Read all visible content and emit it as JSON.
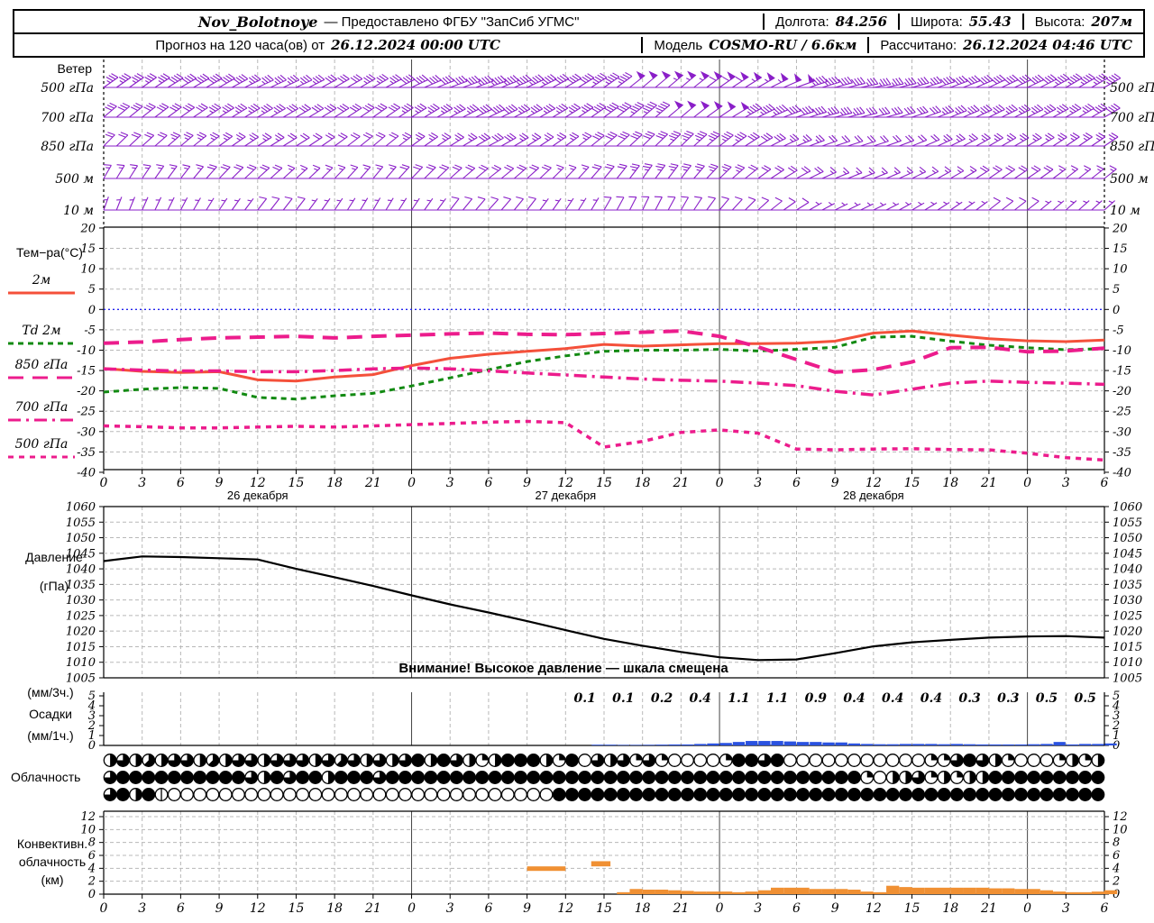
{
  "header": {
    "station": "Nov_Bolotnoye",
    "provider": "— Предоставлено ФГБУ \"ЗапСиб УГМС\"",
    "lon_label": "Долгота:",
    "lon": "84.256",
    "lat_label": "Широта:",
    "lat": "55.43",
    "alt_label": "Высота:",
    "alt": "207м",
    "forecast_label": "Прогноз на 120 часа(ов) от",
    "forecast_start": "26.12.2024 00:00 UTC",
    "model_label": "Модель",
    "model": "COSMO-RU / 6.6км",
    "calc_label": "Рассчитано:",
    "calc_time": "26.12.2024 04:46 UTC"
  },
  "panels": {
    "wind": {
      "title": "Ветер",
      "levels": [
        "500 гПа",
        "700 гПа",
        "850 гПа",
        "500 м",
        "10 м"
      ]
    },
    "temp": {
      "title": "Тем−ра(°C)"
    },
    "pressure": {
      "title1": "Давление",
      "title2": "(гПа)",
      "warning": "Внимание! Высокое давление — шкала смещена"
    },
    "precip": {
      "title1": "(мм/3ч.)",
      "title2": "Осадки",
      "title3": "(мм/1ч.)"
    },
    "cloud": {
      "title": "Облачность"
    },
    "conv": {
      "title1": "Конвективн.",
      "title2": "облачность",
      "title3": "(км)"
    }
  },
  "chart_data": {
    "type": "meteogram",
    "x_hours_range": [
      0,
      78
    ],
    "x_tick_step": 3,
    "step_h": 3,
    "day_labels": [
      {
        "hour": 12,
        "label": "26 декабря"
      },
      {
        "hour": 36,
        "label": "27 декабря"
      },
      {
        "hour": 60,
        "label": "28 декабря"
      }
    ],
    "colors": {
      "barb": "#8a1fc8",
      "grid": "#b8b8b8",
      "day_grid": "#444444",
      "zero_line": "#2222ee",
      "pressure_line": "#000000",
      "precip_bar": "#2a52e0",
      "conv_bar": "#f09033"
    },
    "wind_barbs": {
      "levels": [
        {
          "name": "500 гПа",
          "speeds_kt": [
            35,
            35,
            40,
            40,
            35,
            35,
            30,
            35,
            40,
            40,
            45,
            45,
            40,
            45,
            50,
            55,
            60,
            55,
            50,
            40,
            35,
            35,
            40,
            40,
            40,
            45,
            45
          ],
          "dirs_deg": [
            235,
            235,
            240,
            240,
            245,
            245,
            240,
            240,
            245,
            250,
            250,
            245,
            240,
            235,
            230,
            230,
            235,
            240,
            250,
            255,
            260,
            255,
            250,
            245,
            245,
            240,
            240
          ]
        },
        {
          "name": "700 гПа",
          "speeds_kt": [
            30,
            30,
            30,
            35,
            35,
            30,
            30,
            30,
            35,
            35,
            40,
            35,
            35,
            40,
            45,
            50,
            50,
            45,
            40,
            35,
            30,
            30,
            35,
            35,
            35,
            35,
            40
          ],
          "dirs_deg": [
            230,
            232,
            235,
            238,
            240,
            240,
            238,
            235,
            238,
            242,
            245,
            242,
            238,
            234,
            230,
            230,
            236,
            244,
            252,
            256,
            256,
            252,
            248,
            244,
            244,
            240,
            240
          ]
        },
        {
          "name": "850 гПа",
          "speeds_kt": [
            20,
            20,
            25,
            25,
            25,
            20,
            20,
            20,
            25,
            25,
            30,
            25,
            25,
            30,
            30,
            35,
            35,
            30,
            25,
            20,
            20,
            20,
            25,
            25,
            25,
            25,
            25
          ],
          "dirs_deg": [
            225,
            228,
            230,
            234,
            238,
            238,
            234,
            230,
            234,
            238,
            242,
            238,
            234,
            230,
            226,
            226,
            232,
            240,
            248,
            252,
            252,
            248,
            244,
            240,
            240,
            236,
            236
          ]
        },
        {
          "name": "500 м",
          "speeds_kt": [
            15,
            15,
            15,
            20,
            20,
            15,
            15,
            15,
            20,
            20,
            20,
            20,
            15,
            20,
            25,
            25,
            25,
            20,
            20,
            15,
            15,
            15,
            15,
            20,
            20,
            15,
            15
          ],
          "dirs_deg": [
            210,
            214,
            218,
            224,
            228,
            228,
            224,
            220,
            224,
            228,
            232,
            228,
            224,
            220,
            216,
            218,
            226,
            234,
            242,
            248,
            248,
            244,
            240,
            236,
            236,
            232,
            232
          ]
        },
        {
          "name": "10 м",
          "speeds_kt": [
            5,
            5,
            5,
            5,
            8,
            8,
            5,
            5,
            5,
            8,
            8,
            8,
            5,
            8,
            10,
            10,
            10,
            8,
            8,
            5,
            5,
            5,
            5,
            8,
            8,
            5,
            5
          ],
          "dirs_deg": [
            200,
            204,
            208,
            214,
            218,
            218,
            214,
            210,
            214,
            218,
            222,
            218,
            214,
            210,
            206,
            210,
            220,
            228,
            238,
            244,
            244,
            240,
            236,
            232,
            232,
            228,
            228
          ]
        }
      ]
    },
    "temperature": {
      "ylim": [
        -40,
        20
      ],
      "grid_step": 5,
      "series": [
        {
          "name": "2м",
          "color": "#f4503a",
          "width": 3,
          "dash": "",
          "values": [
            -14.5,
            -15.2,
            -15.5,
            -15.3,
            -17.3,
            -17.6,
            -16.6,
            -16.0,
            -13.8,
            -12.0,
            -11.0,
            -10.3,
            -9.6,
            -8.6,
            -9.0,
            -8.7,
            -8.4,
            -8.4,
            -8.3,
            -7.8,
            -5.8,
            -5.3,
            -6.3,
            -7.2,
            -7.7,
            -7.9,
            -7.5
          ]
        },
        {
          "name": "Td  2м",
          "color": "#128a12",
          "width": 3,
          "dash": "6 5",
          "values": [
            -20.3,
            -19.6,
            -19.2,
            -19.4,
            -21.6,
            -22.0,
            -21.2,
            -20.6,
            -18.8,
            -16.8,
            -14.8,
            -12.8,
            -11.4,
            -10.3,
            -10.0,
            -10.0,
            -9.8,
            -10.2,
            -9.8,
            -9.3,
            -6.8,
            -6.6,
            -7.8,
            -8.8,
            -9.4,
            -9.9,
            -9.6
          ]
        },
        {
          "name": "850 гПа",
          "color": "#ec1c8c",
          "width": 4,
          "dash": "17 10",
          "values": [
            -8.3,
            -8.0,
            -7.4,
            -7.0,
            -6.8,
            -6.6,
            -7.0,
            -6.6,
            -6.3,
            -6.0,
            -5.8,
            -6.1,
            -6.2,
            -5.9,
            -5.6,
            -5.3,
            -6.6,
            -9.2,
            -12.3,
            -15.4,
            -14.8,
            -12.9,
            -9.4,
            -9.3,
            -10.4,
            -10.2,
            -9.5
          ]
        },
        {
          "name": "700 гПа",
          "color": "#ec1c8c",
          "width": 3.5,
          "dash": "14 6 3 6",
          "values": [
            -14.6,
            -14.9,
            -15.1,
            -15.1,
            -15.3,
            -15.3,
            -15.0,
            -14.6,
            -14.4,
            -14.6,
            -15.1,
            -15.6,
            -16.1,
            -16.6,
            -17.1,
            -17.4,
            -17.6,
            -18.1,
            -18.7,
            -20.1,
            -21.0,
            -19.6,
            -18.1,
            -17.6,
            -17.9,
            -18.1,
            -18.4
          ]
        },
        {
          "name": "500 гПа",
          "color": "#ec1c8c",
          "width": 3.5,
          "dash": "6 6",
          "values": [
            -28.6,
            -28.8,
            -29.1,
            -29.1,
            -28.9,
            -28.7,
            -28.9,
            -28.6,
            -28.3,
            -28.0,
            -27.7,
            -27.5,
            -27.8,
            -33.8,
            -32.4,
            -30.2,
            -29.6,
            -30.4,
            -34.3,
            -34.5,
            -34.3,
            -34.2,
            -34.4,
            -34.5,
            -35.3,
            -36.4,
            -37.0
          ]
        }
      ]
    },
    "pressure": {
      "ylim": [
        1005,
        1060
      ],
      "grid_step": 5,
      "values": [
        1042.5,
        1044.0,
        1043.8,
        1043.4,
        1043.0,
        1040.0,
        1037.3,
        1034.5,
        1031.5,
        1028.6,
        1026.0,
        1023.2,
        1020.3,
        1017.5,
        1015.3,
        1013.3,
        1011.6,
        1010.7,
        1010.9,
        1012.9,
        1015.1,
        1016.4,
        1017.2,
        1017.9,
        1018.3,
        1018.4,
        1017.9
      ]
    },
    "precip": {
      "ylim": [
        0,
        5
      ],
      "labels_3h": {
        "start_hour": 36,
        "values": [
          0.1,
          0.1,
          0.2,
          0.4,
          1.1,
          1.1,
          0.9,
          0.4,
          0.4,
          0.4,
          0.3,
          0.3,
          0.5,
          0.5
        ]
      },
      "hourly": {
        "start_hour": 38,
        "values": [
          0.07,
          0.07,
          0.05,
          0.05,
          0.06,
          0.08,
          0.1,
          0.1,
          0.15,
          0.2,
          0.25,
          0.35,
          0.45,
          0.45,
          0.45,
          0.4,
          0.35,
          0.35,
          0.3,
          0.3,
          0.2,
          0.15,
          0.12,
          0.12,
          0.15,
          0.15,
          0.15,
          0.12,
          0.15,
          0.12,
          0.1,
          0.1,
          0.1,
          0.1,
          0.12,
          0.15,
          0.35,
          0.1,
          0.15,
          0.15,
          0.2
        ]
      }
    },
    "cloud_rows": [
      [
        "4645466454664666465646468486",
        "42488842",
        "80646262",
        "000028",
        "868000",
        "00000000",
        "22686420",
        "002424"
      ],
      [
        "6888888888864868848886888888",
        "8888888888888888888888888888",
        "888",
        "20446242",
        "44888888888"
      ],
      [
        "68481",
        "000000000000000000000000000000",
        "8888888888888888888888888888888888888888888"
      ]
    ],
    "convective": {
      "ylim": [
        0,
        12
      ],
      "grid_step": 2,
      "floating_bars": [
        [
          33,
          36,
          3.6,
          4.3
        ],
        [
          38,
          39.5,
          4.3,
          5.1
        ]
      ],
      "hourly": {
        "start_hour": 40,
        "tops": [
          0.3,
          0.8,
          0.7,
          0.7,
          0.6,
          0.5,
          0.4,
          0.4,
          0.4,
          0.3,
          0.4,
          0.6,
          1.0,
          1.0,
          1.0,
          0.8,
          0.8,
          0.8,
          0.7,
          0.4,
          0.3,
          1.3,
          1.1,
          1.0,
          1.0,
          1.0,
          1.0,
          1.0,
          1.0,
          0.9,
          0.9,
          0.8,
          0.8,
          0.6,
          0.4,
          0.3,
          0.3,
          0.4,
          0.6
        ]
      }
    }
  }
}
